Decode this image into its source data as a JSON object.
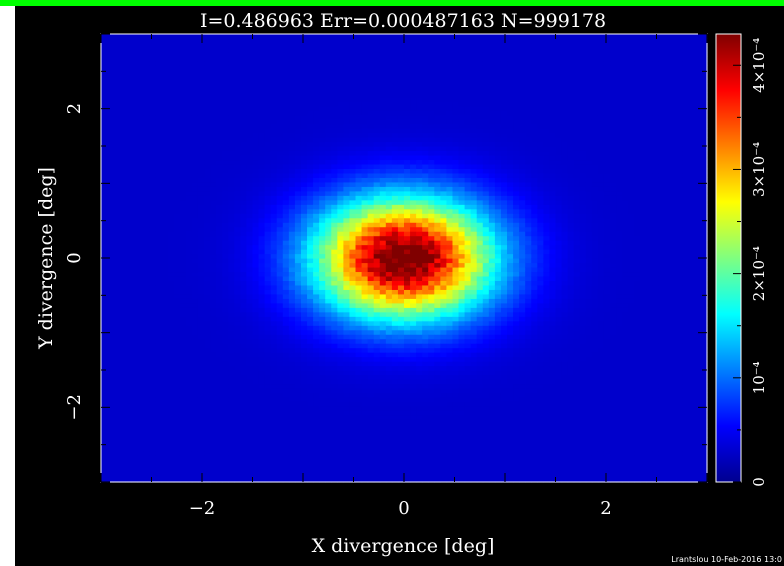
{
  "window": {
    "accent_bar_color": "#00ff00"
  },
  "footer": {
    "stamp": "Lrantslou 10-Feb-2016 13:0"
  },
  "chart_data": {
    "type": "heatmap",
    "title": "I=0.486963 Err=0.000487163 N=999178",
    "xlabel": "X divergence [deg]",
    "ylabel": "Y divergence [deg]",
    "xlim": [
      -3,
      3
    ],
    "ylim": [
      -3,
      3
    ],
    "x_ticks": [
      {
        "v": -2,
        "label": "−2"
      },
      {
        "v": 0,
        "label": "0"
      },
      {
        "v": 2,
        "label": "2"
      }
    ],
    "y_ticks": [
      {
        "v": -2,
        "label": "−2"
      },
      {
        "v": 0,
        "label": "0"
      },
      {
        "v": 2,
        "label": "2"
      }
    ],
    "colorbar": {
      "min": 0,
      "max": 0.00043,
      "ticks": [
        {
          "v": 0,
          "label": "0"
        },
        {
          "v": 0.0001,
          "label": "10⁻⁴"
        },
        {
          "v": 0.0002,
          "label": "2×10⁻⁴"
        },
        {
          "v": 0.0003,
          "label": "3×10⁻⁴"
        },
        {
          "v": 0.0004,
          "label": "4×10⁻⁴"
        }
      ],
      "colormap": "jet"
    },
    "distribution": {
      "shape": "2D gaussian",
      "center": [
        0,
        0
      ],
      "sigma_x_deg": 0.6,
      "sigma_y_deg": 0.55,
      "peak_value": 0.00042,
      "grid": [
        100,
        100
      ]
    }
  }
}
